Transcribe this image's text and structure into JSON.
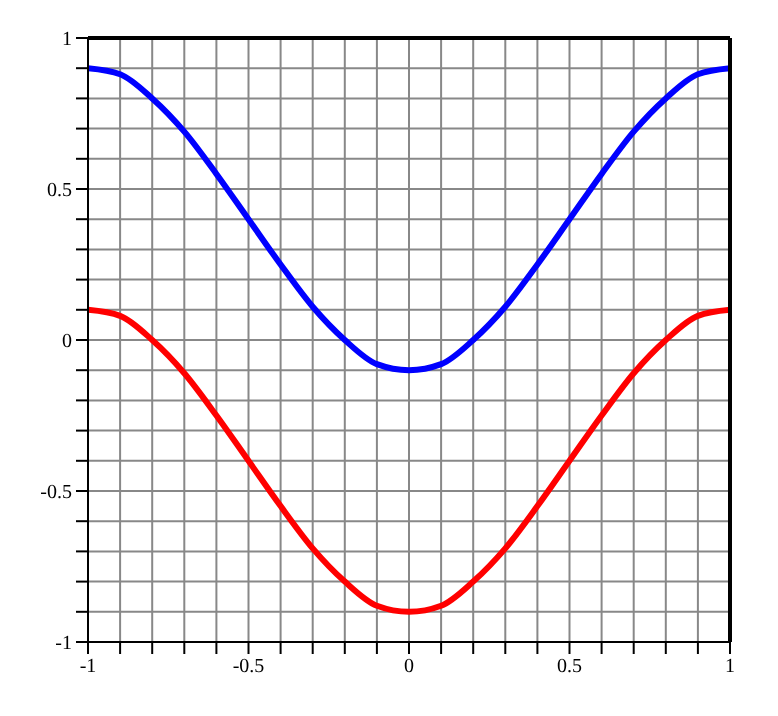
{
  "chart_data": {
    "type": "line",
    "x": [
      -1,
      -0.9,
      -0.8,
      -0.7,
      -0.6,
      -0.5,
      -0.4,
      -0.3,
      -0.2,
      -0.1,
      0,
      0.1,
      0.2,
      0.3,
      0.4,
      0.5,
      0.6,
      0.7,
      0.8,
      0.9,
      1
    ],
    "series": [
      {
        "color": "#0000ff",
        "values": [
          0.9,
          0.88,
          0.8,
          0.69,
          0.55,
          0.4,
          0.25,
          0.11,
          0,
          -0.08,
          -0.1,
          -0.08,
          0,
          0.11,
          0.25,
          0.4,
          0.55,
          0.69,
          0.8,
          0.88,
          0.9
        ]
      },
      {
        "color": "#ff0000",
        "values": [
          0.1,
          0.08,
          0,
          -0.11,
          -0.25,
          -0.4,
          -0.55,
          -0.69,
          -0.8,
          -0.88,
          -0.9,
          -0.88,
          -0.8,
          -0.69,
          -0.55,
          -0.4,
          -0.25,
          -0.11,
          0,
          0.08,
          0.1
        ]
      }
    ],
    "xlim": [
      -1,
      1
    ],
    "xticks": [
      -1,
      {
        "value": -0.9,
        "label": null
      },
      {
        "value": -0.8,
        "label": null
      },
      {
        "value": -0.7,
        "label": null
      },
      {
        "value": -0.6,
        "label": null
      },
      -0.5,
      {
        "value": -0.4,
        "label": null
      },
      {
        "value": -0.3,
        "label": null
      },
      {
        "value": -0.2,
        "label": null
      },
      {
        "value": -0.1,
        "label": null
      },
      0,
      {
        "value": 0.1,
        "label": null
      },
      {
        "value": 0.2,
        "label": null
      },
      {
        "value": 0.3,
        "label": null
      },
      {
        "value": 0.4,
        "label": null
      },
      0.5,
      {
        "value": 0.6,
        "label": null
      },
      {
        "value": 0.7,
        "label": null
      },
      {
        "value": 0.8,
        "label": null
      },
      {
        "value": 0.9,
        "label": null
      },
      1
    ],
    "ylim": [
      -1,
      1
    ],
    "yticks": [
      -1,
      {
        "value": -0.9,
        "label": null
      },
      {
        "value": -0.8,
        "label": null
      },
      {
        "value": -0.7,
        "label": null
      },
      {
        "value": -0.6,
        "label": null
      },
      -0.5,
      {
        "value": -0.4,
        "label": null
      },
      {
        "value": -0.3,
        "label": null
      },
      {
        "value": -0.2,
        "label": null
      },
      {
        "value": -0.1,
        "label": null
      },
      0,
      {
        "value": 0.1,
        "label": null
      },
      {
        "value": 0.2,
        "label": null
      },
      {
        "value": 0.3,
        "label": null
      },
      {
        "value": 0.4,
        "label": null
      },
      0.5,
      {
        "value": 0.6,
        "label": null
      },
      {
        "value": 0.7,
        "label": null
      },
      {
        "value": 0.8,
        "label": null
      },
      {
        "value": 0.9,
        "label": null
      },
      1
    ],
    "grid": true,
    "legend": false,
    "marker": "none",
    "line_style": "solid"
  }
}
